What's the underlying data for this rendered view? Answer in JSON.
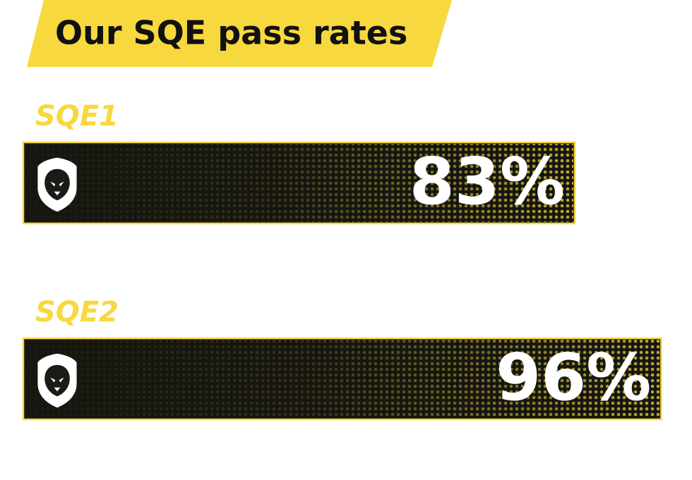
{
  "chart_data": {
    "type": "bar",
    "title": "Our SQE pass rates",
    "categories": [
      "SQE1",
      "SQE2"
    ],
    "values": [
      83,
      96
    ],
    "value_labels": [
      "83%",
      "96%"
    ],
    "color": "#f7d83f",
    "xlim": [
      0,
      100
    ]
  }
}
